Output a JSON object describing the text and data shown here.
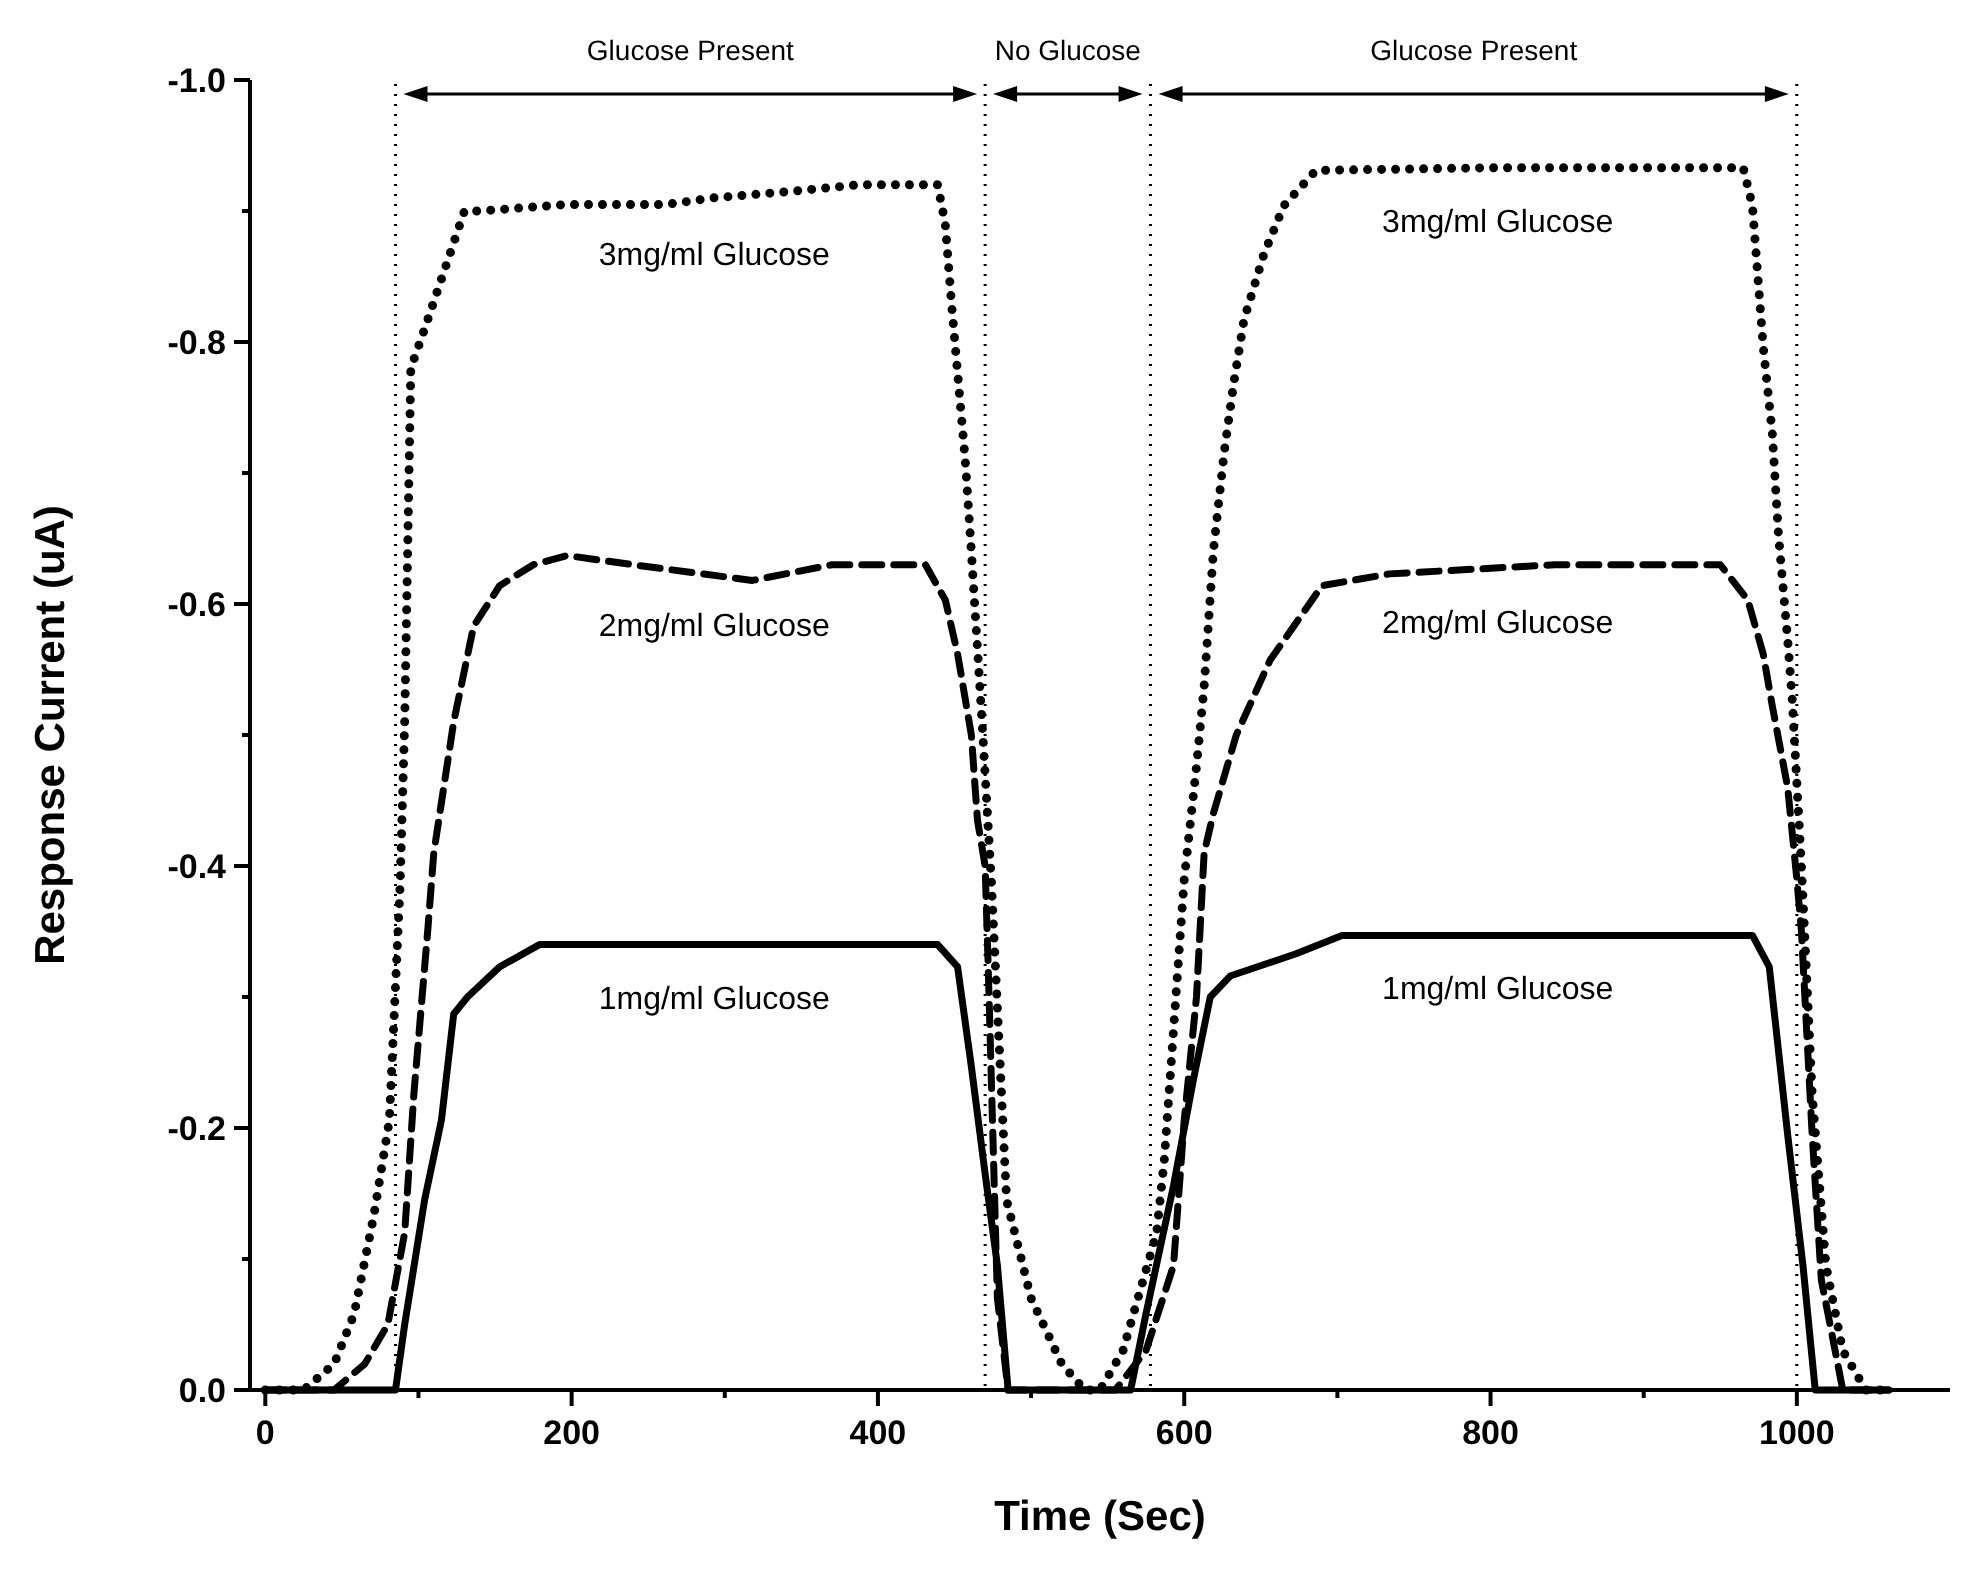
{
  "chart_data": {
    "type": "line",
    "xlabel": "Time (Sec)",
    "ylabel": "Response Current (uA)",
    "xlim": [
      -10,
      1100
    ],
    "ylim": [
      0,
      -1.0
    ],
    "xticks": [
      0,
      {
        "value": 100,
        "label": null
      },
      200,
      {
        "value": 300,
        "label": null
      },
      400,
      {
        "value": 500,
        "label": null
      },
      600,
      {
        "value": 700,
        "label": null
      },
      800,
      {
        "value": 900,
        "label": null
      },
      1000
    ],
    "yticks": [
      {
        "value": 0,
        "label": "0.0"
      },
      {
        "value": -0.1,
        "label": null
      },
      -0.2,
      {
        "value": -0.3,
        "label": null
      },
      -0.4,
      {
        "value": -0.5,
        "label": null
      },
      -0.6,
      {
        "value": -0.7,
        "label": null
      },
      -0.8,
      {
        "value": -0.9,
        "label": null
      },
      {
        "value": -1.0,
        "label": "-1.0"
      }
    ],
    "grid": false,
    "ref_lines": [
      {
        "axis": "x",
        "value": 85,
        "line_style": "dotted"
      },
      {
        "axis": "x",
        "value": 470,
        "line_style": "dotted"
      },
      {
        "axis": "x",
        "value": 578,
        "line_style": "dotted"
      },
      {
        "axis": "x",
        "value": 1000,
        "line_style": "dotted"
      }
    ],
    "annotations": [
      "Glucose Present",
      "No Glucose",
      "Glucose Present"
    ],
    "series": [
      {
        "name": "3mg/ml Glucose",
        "color": "#000000",
        "line_style": "dotted",
        "x": [
          0,
          25,
          45,
          58,
          71,
          81,
          88,
          91,
          95,
          104,
          130,
          140,
          197,
          262,
          292,
          344,
          387,
          439,
          444,
          448,
          457,
          461,
          468,
          474,
          484,
          500,
          520,
          535,
          545,
          560,
          582,
          587,
          600,
          608,
          613,
          619,
          626,
          632,
          639,
          652,
          665,
          686,
          800,
          965,
          971,
          978,
          984,
          988,
          994,
          997,
          1003,
          1010,
          1019,
          1030,
          1045,
          1060
        ],
        "values": [
          0,
          0,
          -0.02,
          -0.058,
          -0.134,
          -0.206,
          -0.385,
          -0.51,
          -0.78,
          -0.81,
          -0.9,
          -0.9,
          -0.905,
          -0.905,
          -0.91,
          -0.915,
          -0.92,
          -0.92,
          -0.89,
          -0.83,
          -0.71,
          -0.64,
          -0.51,
          -0.39,
          -0.145,
          -0.07,
          -0.02,
          0,
          0,
          -0.03,
          -0.12,
          -0.176,
          -0.39,
          -0.476,
          -0.537,
          -0.64,
          -0.715,
          -0.766,
          -0.817,
          -0.867,
          -0.904,
          -0.931,
          -0.933,
          -0.933,
          -0.904,
          -0.797,
          -0.73,
          -0.653,
          -0.573,
          -0.527,
          -0.4,
          -0.226,
          -0.095,
          -0.03,
          0,
          0
        ]
      },
      {
        "name": "2mg/ml Glucose",
        "color": "#000000",
        "line_style": "dashed",
        "x": [
          0,
          45,
          65,
          80,
          91,
          97,
          106,
          110,
          123,
          136,
          153,
          175,
          197,
          240,
          318,
          370,
          431,
          444,
          452,
          461,
          465,
          470,
          472,
          478,
          485,
          555,
          575,
          593,
          600,
          608,
          613,
          619,
          634,
          656,
          690,
          734,
          842,
          950,
          968,
          978,
          984,
          994,
          1000,
          1003,
          1010,
          1016,
          1030,
          1060
        ],
        "values": [
          0,
          0,
          -0.02,
          -0.05,
          -0.12,
          -0.226,
          -0.35,
          -0.41,
          -0.51,
          -0.583,
          -0.614,
          -0.63,
          -0.637,
          -0.63,
          -0.618,
          -0.63,
          -0.63,
          -0.603,
          -0.562,
          -0.5,
          -0.435,
          -0.4,
          -0.323,
          -0.07,
          0,
          0,
          -0.03,
          -0.095,
          -0.206,
          -0.3,
          -0.41,
          -0.44,
          -0.5,
          -0.557,
          -0.614,
          -0.623,
          -0.63,
          -0.63,
          -0.603,
          -0.562,
          -0.522,
          -0.46,
          -0.39,
          -0.35,
          -0.195,
          -0.084,
          0,
          0
        ]
      },
      {
        "name": "1mg/ml Glucose",
        "color": "#000000",
        "line_style": "solid",
        "x": [
          0,
          85,
          91,
          104,
          115,
          123,
          132,
          153,
          179,
          439,
          452,
          461,
          470,
          478,
          485,
          565,
          575,
          593,
          606,
          617,
          630,
          673,
          703,
          971,
          982,
          994,
          1004,
          1012,
          1060
        ],
        "values": [
          0,
          0,
          -0.05,
          -0.145,
          -0.206,
          -0.287,
          -0.3,
          -0.323,
          -0.34,
          -0.34,
          -0.323,
          -0.247,
          -0.165,
          -0.095,
          0,
          0,
          -0.058,
          -0.156,
          -0.237,
          -0.3,
          -0.316,
          -0.333,
          -0.347,
          -0.347,
          -0.323,
          -0.195,
          -0.095,
          0,
          0
        ]
      }
    ]
  }
}
